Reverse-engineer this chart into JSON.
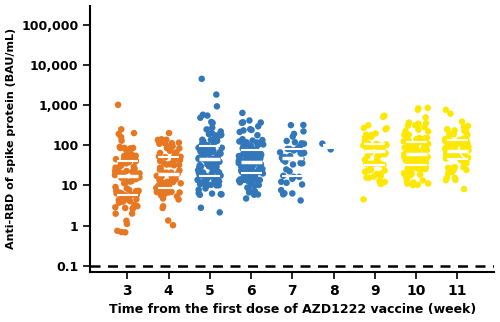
{
  "weeks": [
    3,
    4,
    5,
    6,
    7,
    8,
    9,
    10,
    11
  ],
  "xlabel": "Time from the first dose of AZD1222 vaccine (week)",
  "ylabel": "Anti-RBD of spike protein (BAU/mL)",
  "dotted_line_y": 0.1,
  "ylim_log": [
    0.07,
    300000
  ],
  "yticks": [
    0.1,
    1,
    10,
    100,
    1000,
    10000,
    100000
  ],
  "ytick_labels": [
    "0.1",
    "1",
    "10",
    "100",
    "1,000",
    "10,000",
    "100,000"
  ],
  "week_colors": {
    "3": "#E87722",
    "4": "#E87722",
    "5": "#3377BB",
    "6": "#3377BB",
    "7": "#3377BB",
    "8": "#3377BB",
    "9": "#FFE800",
    "10": "#FFE800",
    "11": "#FFE800"
  },
  "week_n_points": {
    "3": 100,
    "4": 80,
    "5": 110,
    "6": 115,
    "7": 45,
    "8": 2,
    "9": 65,
    "10": 110,
    "11": 75
  },
  "week_log_median": {
    "3": 2.7,
    "4": 3.2,
    "5": 3.7,
    "6": 3.7,
    "7": 3.8,
    "8": 4.3,
    "9": 4.1,
    "10": 4.2,
    "11": 4.5
  },
  "week_log_sigma": {
    "3": 1.3,
    "4": 1.2,
    "5": 1.2,
    "6": 1.2,
    "7": 1.1,
    "8": 0.5,
    "9": 1.0,
    "10": 1.05,
    "11": 1.0
  }
}
